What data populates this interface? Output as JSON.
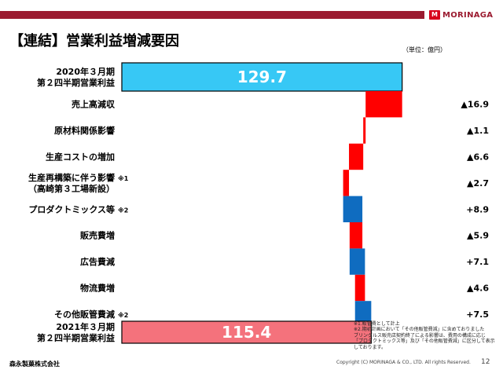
{
  "header": {
    "logo_mark": "M",
    "logo_text": "MORINAGA",
    "title": "【連結】営業利益増減要因",
    "unit": "（単位：億円）"
  },
  "chart_data": {
    "type": "waterfall",
    "start": {
      "label": [
        "2020年３月期",
        "第２四半期営業利益"
      ],
      "value": 129.7,
      "display": "129.7"
    },
    "end": {
      "label": [
        "2021年３月期",
        "第２四半期営業利益"
      ],
      "value": 115.4,
      "display": "115.4"
    },
    "steps": [
      {
        "label": [
          "売上高減収"
        ],
        "value": -16.9,
        "display": "▲16.9"
      },
      {
        "label": [
          "原材料関係影響"
        ],
        "value": -1.1,
        "display": "▲1.1"
      },
      {
        "label": [
          "生産コストの増加"
        ],
        "value": -6.6,
        "display": "▲6.6"
      },
      {
        "label": [
          "生産再構築に伴う影響",
          "（高崎第３工場新設）"
        ],
        "note": "※1",
        "value": -2.7,
        "display": "▲2.7"
      },
      {
        "label": [
          "プロダクトミックス等"
        ],
        "note": "※2",
        "value": 8.9,
        "display": "+8.9"
      },
      {
        "label": [
          "販売費増"
        ],
        "value": -5.9,
        "display": "▲5.9"
      },
      {
        "label": [
          "広告費減"
        ],
        "value": 7.1,
        "display": "+7.1"
      },
      {
        "label": [
          "物流費増"
        ],
        "value": -4.6,
        "display": "▲4.6"
      },
      {
        "label": [
          "その他販管費減"
        ],
        "note": "※2",
        "value": 7.5,
        "display": "+7.5"
      }
    ],
    "colors": {
      "start": "#37c8f5",
      "end": "#f4727c",
      "decrease": "#ff0000",
      "increase": "#0f6cc0"
    }
  },
  "footnotes": [
    "※1.販管費として計上",
    "※2.期初計画において「その他販管費減」に含めておりました",
    "ブリングルス販売店契約終了による影響は、費用の構成に応じ",
    "「プロダクトミックス等」及び「その他販管費減」に区分して表示",
    "しております。"
  ],
  "footer": {
    "company": "森永製菓株式会社",
    "copyright": "Copyright (C) MORINAGA & CO., LTD. All rights Reserved.",
    "page": "12"
  }
}
